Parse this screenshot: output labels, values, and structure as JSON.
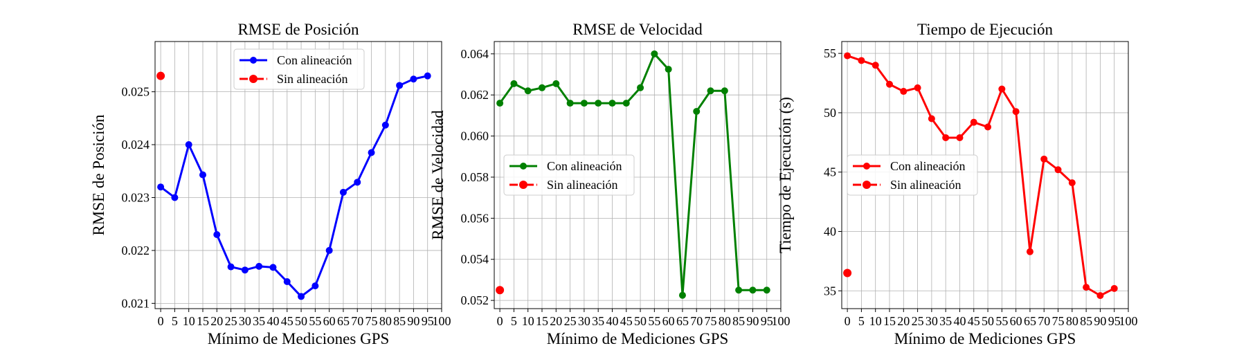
{
  "chart_data": [
    {
      "type": "line",
      "title": "RMSE de Posición",
      "xlabel": "Mínimo de Mediciones GPS",
      "ylabel": "RMSE de Posición",
      "xlim": [
        -2,
        100
      ],
      "ylim": [
        0.0209,
        0.02595
      ],
      "xticks": [
        0,
        5,
        10,
        15,
        20,
        25,
        30,
        35,
        40,
        45,
        50,
        55,
        60,
        65,
        70,
        75,
        80,
        85,
        90,
        95,
        100
      ],
      "yticks": [
        0.021,
        0.022,
        0.023,
        0.024,
        0.025
      ],
      "ytick_labels": [
        "0.021",
        "0.022",
        "0.023",
        "0.024",
        "0.025"
      ],
      "grid": true,
      "legend_position": "top-center",
      "series": [
        {
          "name": "Con alineación",
          "color": "#0000ff",
          "x": [
            0,
            5,
            10,
            15,
            20,
            25,
            30,
            35,
            40,
            45,
            50,
            55,
            60,
            65,
            70,
            75,
            80,
            85,
            90,
            95
          ],
          "values": [
            0.0232,
            0.023,
            0.024,
            0.02343,
            0.0223,
            0.02169,
            0.02163,
            0.0217,
            0.02168,
            0.02141,
            0.02113,
            0.02133,
            0.022,
            0.0231,
            0.02329,
            0.02385,
            0.02437,
            0.02512,
            0.02524,
            0.0253
          ]
        },
        {
          "name": "Sin alineación",
          "color": "#ff0000",
          "dashed": true,
          "x": [
            0
          ],
          "values": [
            0.0253
          ]
        }
      ]
    },
    {
      "type": "line",
      "title": "RMSE de Velocidad",
      "xlabel": "Mínimo de Mediciones GPS",
      "ylabel": "RMSE de Velocidad",
      "xlim": [
        -2,
        100
      ],
      "ylim": [
        0.0516,
        0.0646
      ],
      "xticks": [
        0,
        5,
        10,
        15,
        20,
        25,
        30,
        35,
        40,
        45,
        50,
        55,
        60,
        65,
        70,
        75,
        80,
        85,
        90,
        95,
        100
      ],
      "yticks": [
        0.052,
        0.054,
        0.056,
        0.058,
        0.06,
        0.062,
        0.064
      ],
      "ytick_labels": [
        "0.052",
        "0.054",
        "0.056",
        "0.058",
        "0.060",
        "0.062",
        "0.064"
      ],
      "grid": true,
      "legend_position": "center-left",
      "series": [
        {
          "name": "Con alineación",
          "color": "#008000",
          "x": [
            0,
            5,
            10,
            15,
            20,
            25,
            30,
            35,
            40,
            45,
            50,
            55,
            60,
            65,
            70,
            75,
            80,
            85,
            90,
            95
          ],
          "values": [
            0.0616,
            0.06255,
            0.0622,
            0.06235,
            0.06255,
            0.0616,
            0.0616,
            0.0616,
            0.0616,
            0.0616,
            0.06235,
            0.064,
            0.06325,
            0.05225,
            0.0612,
            0.0622,
            0.0622,
            0.0525,
            0.0525,
            0.0525
          ]
        },
        {
          "name": "Sin alineación",
          "color": "#ff0000",
          "dashed": true,
          "x": [
            0
          ],
          "values": [
            0.0525
          ]
        }
      ]
    },
    {
      "type": "line",
      "title": "Tiempo de Ejecución",
      "xlabel": "Mínimo de Mediciones GPS",
      "ylabel": "Tiempo de Ejecución (s)",
      "xlim": [
        -2,
        100
      ],
      "ylim": [
        33.5,
        56.0
      ],
      "xticks": [
        0,
        5,
        10,
        15,
        20,
        25,
        30,
        35,
        40,
        45,
        50,
        55,
        60,
        65,
        70,
        75,
        80,
        85,
        90,
        95,
        100
      ],
      "yticks": [
        35,
        40,
        45,
        50,
        55
      ],
      "ytick_labels": [
        "35",
        "40",
        "45",
        "50",
        "55"
      ],
      "grid": true,
      "legend_position": "center-left",
      "series": [
        {
          "name": "Con alineación",
          "color": "#ff0000",
          "x": [
            0,
            5,
            10,
            15,
            20,
            25,
            30,
            35,
            40,
            45,
            50,
            55,
            60,
            65,
            70,
            75,
            80,
            85,
            90,
            95
          ],
          "values": [
            54.8,
            54.4,
            54.0,
            52.4,
            51.8,
            52.1,
            49.5,
            47.9,
            47.9,
            49.2,
            48.8,
            52.0,
            50.1,
            38.3,
            46.1,
            45.2,
            44.1,
            35.3,
            34.6,
            35.2
          ]
        },
        {
          "name": "Sin alineación",
          "color": "#ff0000",
          "dashed": true,
          "x": [
            0
          ],
          "values": [
            36.5
          ]
        }
      ]
    }
  ]
}
